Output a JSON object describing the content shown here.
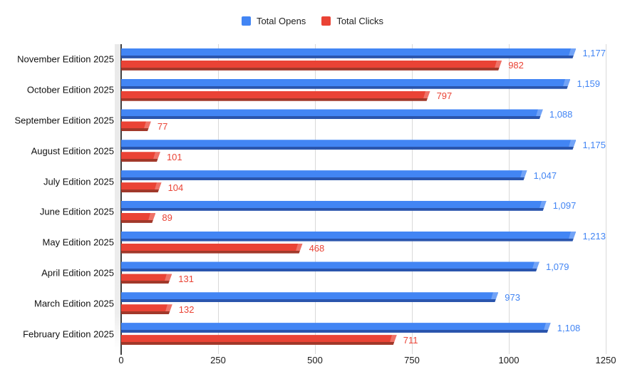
{
  "legend": {
    "items": [
      {
        "label": "Total Opens",
        "color": "#4285f4"
      },
      {
        "label": "Total Clicks",
        "color": "#ea4335"
      }
    ]
  },
  "chart_data": {
    "type": "bar",
    "orientation": "horizontal",
    "title": "",
    "categories": [
      "November Edition 2025",
      "October Edition 2025",
      "September Edition 2025",
      "August Edition 2025",
      "July Edition 2025",
      "June Edition 2025",
      "May Edition 2025",
      "April Edition 2025",
      "March Edition 2025",
      "February Edition 2025"
    ],
    "series": [
      {
        "name": "Total Opens",
        "color": "#4285f4",
        "shade_color": "#2a55ad",
        "label_color": "#4285f4",
        "values": [
          1177,
          1159,
          1088,
          1175,
          1047,
          1097,
          1213,
          1079,
          973,
          1108
        ],
        "value_labels": [
          "1,177",
          "1,159",
          "1,088",
          "1,175",
          "1,047",
          "1,097",
          "1,213",
          "1,079",
          "973",
          "1,108"
        ]
      },
      {
        "name": "Total Clicks",
        "color": "#ea4335",
        "shade_color": "#a1382a",
        "label_color": "#ea4335",
        "values": [
          982,
          797,
          77,
          101,
          104,
          89,
          468,
          131,
          132,
          711
        ],
        "value_labels": [
          "982",
          "797",
          "77",
          "101",
          "104",
          "89",
          "468",
          "131",
          "132",
          "711"
        ]
      }
    ],
    "xlim": [
      0,
      1250
    ],
    "x_ticks": [
      {
        "value": 0,
        "label": "0"
      },
      {
        "value": 250,
        "label": "250"
      },
      {
        "value": 500,
        "label": "500"
      },
      {
        "value": 750,
        "label": "750"
      },
      {
        "value": 1000,
        "label": "1000"
      },
      {
        "value": 1250,
        "label": "1250"
      }
    ],
    "grid": true,
    "legend_position": "top"
  }
}
